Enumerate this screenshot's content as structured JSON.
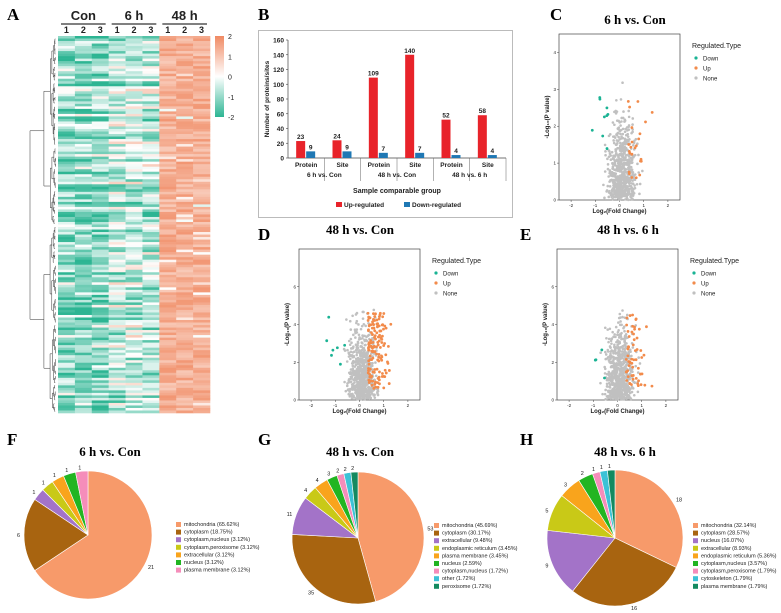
{
  "panels": {
    "A": "A",
    "B": "B",
    "C": "C",
    "D": "D",
    "E": "E",
    "F": "F",
    "G": "G",
    "H": "H"
  },
  "heatmap": {
    "groups": [
      "Con",
      "6 h",
      "48 h"
    ],
    "replicates": [
      "1",
      "2",
      "3"
    ],
    "scale_ticks": [
      "2",
      "1",
      "0",
      "-1",
      "-2"
    ],
    "colors": {
      "low": "#2db593",
      "mid": "#ffffff",
      "high": "#f08a63"
    }
  },
  "bar_chart": {
    "type": "bar",
    "ylabel": "Number of proteins/sites",
    "xlabel": "Sample comparable group",
    "yticks": [
      "0",
      "20",
      "40",
      "60",
      "80",
      "100",
      "120",
      "140",
      "160"
    ],
    "ylim": [
      0,
      160
    ],
    "categories": [
      "Protein",
      "Site",
      "Protein",
      "Site",
      "Protein",
      "Site"
    ],
    "groups": [
      "6 h vs. Con",
      "48 h vs. Con",
      "48 h vs. 6 h"
    ],
    "series": [
      {
        "name": "Up-regulated",
        "color": "#e8232a",
        "values": [
          23,
          24,
          109,
          140,
          52,
          58
        ]
      },
      {
        "name": "Down-regulated",
        "color": "#1f78b4",
        "values": [
          9,
          9,
          7,
          7,
          4,
          4
        ]
      }
    ]
  },
  "volcano_legend": {
    "title": "Regulated.Type",
    "items": [
      {
        "label": "Down",
        "color": "#1ab394"
      },
      {
        "label": "Up",
        "color": "#f28b4b"
      },
      {
        "label": "None",
        "color": "#c0c0c0"
      }
    ]
  },
  "volcanoes": [
    {
      "title": "6 h vs. Con",
      "xlabel": "Log₂(Fold Change)",
      "ylabel": "-Log₁₀(P value)",
      "xticks": [
        "-2",
        "-1",
        "0",
        "1",
        "2"
      ],
      "yticks": [
        "0",
        "1",
        "2",
        "3",
        "4"
      ],
      "n_up": 24,
      "n_down": 9
    },
    {
      "title": "48 h vs. Con",
      "xlabel": "Log₂(Fold Change)",
      "ylabel": "-Log₁₀(P value)",
      "xticks": [
        "-2",
        "-1",
        "0",
        "1",
        "2"
      ],
      "yticks": [
        "0",
        "2",
        "4",
        "6"
      ],
      "n_up": 140,
      "n_down": 7
    },
    {
      "title": "48 h vs. 6 h",
      "xlabel": "Log₂(Fold Change)",
      "ylabel": "-Log₁₀(P value)",
      "xticks": [
        "-2",
        "-1",
        "0",
        "1",
        "2"
      ],
      "yticks": [
        "0",
        "2",
        "4",
        "6"
      ],
      "n_up": 58,
      "n_down": 4
    }
  ],
  "pies": [
    {
      "title": "6 h vs. Con",
      "slices": [
        {
          "label": "mitochondria (65.62%)",
          "value": 21,
          "color": "#f79a6a"
        },
        {
          "label": "cytoplasm (18.75%)",
          "value": 6,
          "color": "#a86410"
        },
        {
          "label": "cytoplasm,nucleus (3.12%)",
          "value": 1,
          "color": "#a373c8"
        },
        {
          "label": "cytoplasm,peroxisome (3.12%)",
          "value": 1,
          "color": "#c9c917"
        },
        {
          "label": "extracellular (3.12%)",
          "value": 1,
          "color": "#f9a41c"
        },
        {
          "label": "nucleus (3.12%)",
          "value": 1,
          "color": "#22b522"
        },
        {
          "label": "plasma membrane (3.12%)",
          "value": 1,
          "color": "#f58dba"
        }
      ]
    },
    {
      "title": "48 h vs. Con",
      "slices": [
        {
          "label": "mitochondria (45.69%)",
          "value": 53,
          "color": "#f79a6a"
        },
        {
          "label": "cytoplasm (30.17%)",
          "value": 35,
          "color": "#a86410"
        },
        {
          "label": "extracellular (9.48%)",
          "value": 11,
          "color": "#a373c8"
        },
        {
          "label": "endoplasmic reticulum (3.45%)",
          "value": 4,
          "color": "#c9c917"
        },
        {
          "label": "plasma membrane (3.45%)",
          "value": 4,
          "color": "#f9a41c"
        },
        {
          "label": "nucleus (2.59%)",
          "value": 3,
          "color": "#22b522"
        },
        {
          "label": "cytoplasm,nucleus (1.72%)",
          "value": 2,
          "color": "#f58dba"
        },
        {
          "label": "other (1.72%)",
          "value": 2,
          "color": "#3cc2d6"
        },
        {
          "label": "peroxisome (1.72%)",
          "value": 2,
          "color": "#138a60"
        }
      ]
    },
    {
      "title": "48 h vs. 6 h",
      "slices": [
        {
          "label": "mitochondria (32.14%)",
          "value": 18,
          "color": "#f79a6a"
        },
        {
          "label": "cytoplasm (28.57%)",
          "value": 16,
          "color": "#a86410"
        },
        {
          "label": "nucleus (16.07%)",
          "value": 9,
          "color": "#a373c8"
        },
        {
          "label": "extracellular (8.93%)",
          "value": 5,
          "color": "#c9c917"
        },
        {
          "label": "endoplasmic reticulum (5.36%)",
          "value": 3,
          "color": "#f9a41c"
        },
        {
          "label": "cytoplasm,nucleus (3.57%)",
          "value": 2,
          "color": "#22b522"
        },
        {
          "label": "cytoplasm,peroxisome (1.79%)",
          "value": 1,
          "color": "#f58dba"
        },
        {
          "label": "cytoskeleton (1.79%)",
          "value": 1,
          "color": "#3cc2d6"
        },
        {
          "label": "plasma membrane (1.79%)",
          "value": 1,
          "color": "#138a60"
        }
      ]
    }
  ]
}
